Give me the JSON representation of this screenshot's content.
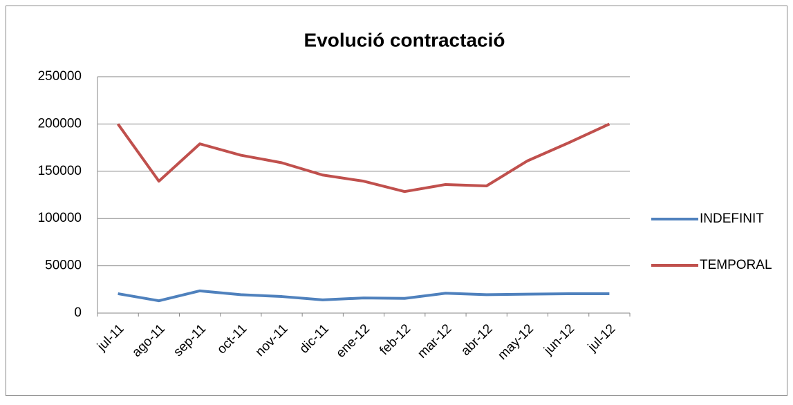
{
  "chart_data": {
    "type": "line",
    "title": "Evolució contractació",
    "categories": [
      "jul-11",
      "ago-11",
      "sep-11",
      "oct-11",
      "nov-11",
      "dic-11",
      "ene-12",
      "feb-12",
      "mar-12",
      "abr-12",
      "may-12",
      "jun-12",
      "jul-12"
    ],
    "series": [
      {
        "name": "INDEFINIT",
        "color": "#4f81bd",
        "values": [
          20500,
          13000,
          23500,
          19500,
          17500,
          14000,
          16000,
          15500,
          21000,
          19500,
          20000,
          20500,
          20500
        ]
      },
      {
        "name": "TEMPORAL",
        "color": "#c0504d",
        "values": [
          200000,
          139500,
          179000,
          167000,
          159000,
          146000,
          139500,
          128500,
          136000,
          134500,
          161000,
          180000,
          200000
        ]
      }
    ],
    "ylim": [
      0,
      250000
    ],
    "yticks": [
      0,
      50000,
      100000,
      150000,
      200000,
      250000
    ],
    "grid": true,
    "legend": "right"
  }
}
